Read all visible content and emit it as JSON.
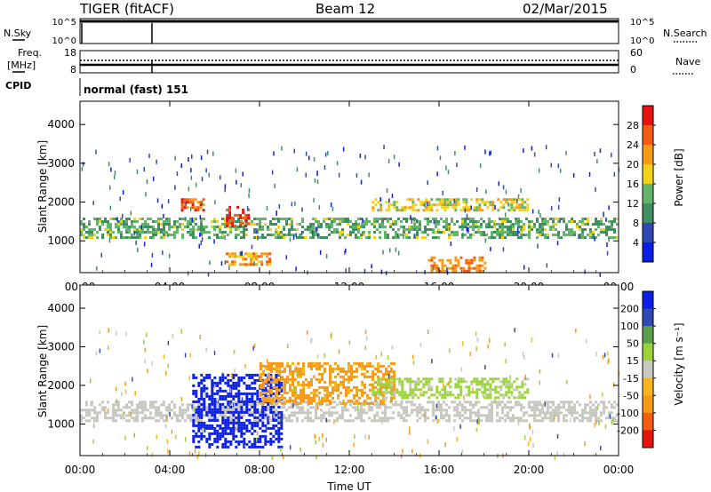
{
  "header": {
    "station": "TIGER (fitACF)",
    "beam": "Beam 12",
    "date": "02/Mar/2015"
  },
  "noise_panel": {
    "left_label": "N.Sky",
    "right_label": "N.Search",
    "ticks_left": [
      "10^5",
      "10^0"
    ],
    "ticks_right": [
      "10^5",
      "10^0"
    ]
  },
  "freq_panel": {
    "left_label_1": "Freq.",
    "left_label_2": "[MHz]",
    "right_label": "Nave",
    "ticks_left": [
      "18",
      "8"
    ],
    "ticks_right": [
      "60",
      "0"
    ]
  },
  "cpid_panel": {
    "label": "CPID",
    "mode": "normal (fast) 151"
  },
  "colors": {
    "power": [
      "#0a1ee6",
      "#2f49b5",
      "#3f8f62",
      "#62b56a",
      "#f3d21a",
      "#f59b18",
      "#f25d12",
      "#e5150d"
    ],
    "velocity": [
      "#e5150d",
      "#f25d12",
      "#f59b18",
      "#f8b61e",
      "#c8c8c0",
      "#9bd33b",
      "#5aa04a",
      "#2f49b5",
      "#0a1ee6"
    ]
  },
  "chart_data": [
    {
      "type": "heatmap",
      "title": "",
      "ylabel": "Slant Range [km]",
      "xlabel": "",
      "x_ticks": [
        "00:00",
        "04:00",
        "08:00",
        "12:00",
        "16:00",
        "20:00",
        "00:00"
      ],
      "y_ticks": [
        1000,
        2000,
        3000,
        4000
      ],
      "xlim": [
        0,
        24
      ],
      "ylim": [
        180,
        4600
      ],
      "colorbar": {
        "label": "Power [dB]",
        "ticks": [
          4,
          8,
          12,
          16,
          20,
          24,
          28
        ],
        "range": [
          0,
          32
        ]
      },
      "features": [
        {
          "x": [
            0,
            24
          ],
          "range": [
            1100,
            1600
          ],
          "value": 13
        },
        {
          "x": [
            4.5,
            5.5
          ],
          "range": [
            1800,
            2100
          ],
          "value": 26
        },
        {
          "x": [
            6.5,
            7.5
          ],
          "range": [
            1400,
            1900
          ],
          "value": 28
        },
        {
          "x": [
            6.5,
            8.5
          ],
          "range": [
            400,
            700
          ],
          "value": 22
        },
        {
          "x": [
            13,
            20
          ],
          "range": [
            1800,
            2100
          ],
          "value": 18
        },
        {
          "x": [
            15.5,
            18
          ],
          "range": [
            200,
            600
          ],
          "value": 24
        }
      ]
    },
    {
      "type": "heatmap",
      "title": "",
      "ylabel": "Slant Range [km]",
      "xlabel": "Time UT",
      "x_ticks": [
        "00:00",
        "04:00",
        "08:00",
        "12:00",
        "16:00",
        "20:00",
        "00:00"
      ],
      "y_ticks": [
        1000,
        2000,
        3000,
        4000
      ],
      "xlim": [
        0,
        24
      ],
      "ylim": [
        180,
        4600
      ],
      "colorbar": {
        "label": "Velocity [m s⁻¹]",
        "ticks": [
          200,
          100,
          50,
          15,
          -15,
          -50,
          -100,
          -200
        ]
      },
      "features": [
        {
          "x": [
            0,
            24
          ],
          "range": [
            1100,
            1600
          ],
          "value": 0
        },
        {
          "x": [
            5,
            9
          ],
          "range": [
            400,
            2300
          ],
          "value": 250
        },
        {
          "x": [
            8,
            14
          ],
          "range": [
            1500,
            2600
          ],
          "value": -60
        },
        {
          "x": [
            13,
            20
          ],
          "range": [
            1700,
            2200
          ],
          "value": 40
        }
      ]
    }
  ]
}
